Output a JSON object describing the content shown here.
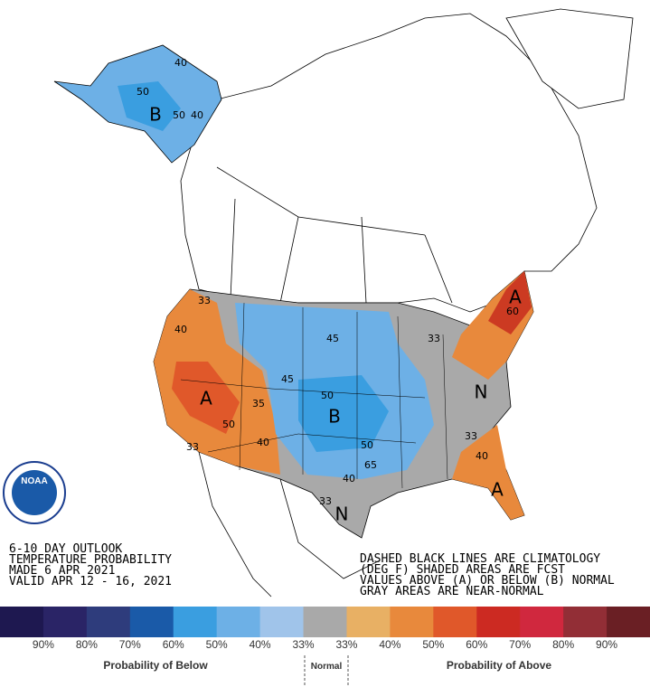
{
  "title_block": {
    "lines": [
      "6-10 DAY OUTLOOK",
      "TEMPERATURE PROBABILITY",
      "MADE  6 APR 2021",
      "VALID  APR 12 - 16, 2021"
    ]
  },
  "notes": {
    "lines": [
      "DASHED BLACK LINES ARE CLIMATOLOGY",
      "(DEG F) SHADED AREAS ARE FCST",
      "VALUES ABOVE (A) OR BELOW (B) NORMAL",
      "GRAY AREAS ARE NEAR-NORMAL"
    ]
  },
  "logo": "NOAA",
  "map_labels": [
    "40",
    "50",
    "B",
    "50",
    "40",
    "33",
    "40",
    "A",
    "50",
    "35",
    "40",
    "33",
    "45",
    "45",
    "50",
    "B",
    "50",
    "40",
    "65",
    "33",
    "N",
    "N",
    "A",
    "60",
    "33",
    "33",
    "40",
    "A"
  ],
  "legend": {
    "colors": [
      "#1e1850",
      "#2a2466",
      "#2e3c7c",
      "#1a5aa8",
      "#3a9ee0",
      "#6db0e6",
      "#a0c4ea",
      "#a9a9a9",
      "#e8b064",
      "#e8893c",
      "#e0582a",
      "#cc2a22",
      "#d0283e",
      "#922e36",
      "#6a1f24"
    ],
    "labels": [
      "90%",
      "80%",
      "70%",
      "60%",
      "50%",
      "40%",
      "33%",
      "33%",
      "40%",
      "50%",
      "60%",
      "70%",
      "80%",
      "90%"
    ],
    "below_title": "Probability of Below",
    "normal_title": "Normal",
    "above_title": "Probability of Above"
  }
}
